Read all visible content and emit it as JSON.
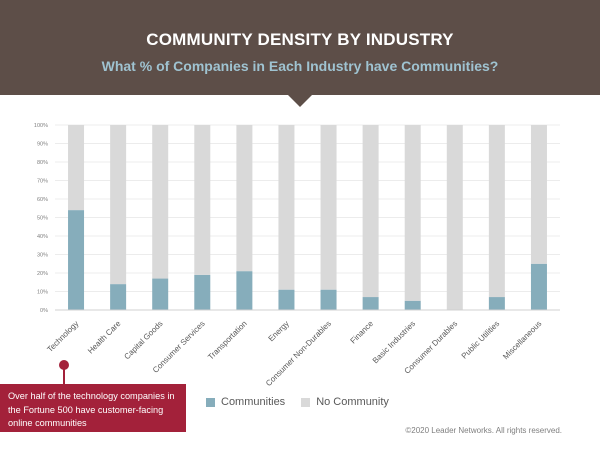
{
  "header": {
    "title": "COMMUNITY DENSITY BY INDUSTRY",
    "subtitle": "What % of Companies in Each Industry have Communities?"
  },
  "callout": {
    "text": "Over half of the technology companies in the Fortune 500 have customer-facing online communities"
  },
  "footer": {
    "copyright": "©2020 Leader Networks. All rights reserved."
  },
  "colors": {
    "banner": "#5d4e48",
    "communities": "#86adbb",
    "no_community": "#d9d9d9",
    "callout": "#a3213a"
  },
  "chart_data": {
    "type": "bar",
    "stacked": true,
    "percent": true,
    "categories": [
      "Technology",
      "Health Care",
      "Capital Goods",
      "Consumer Services",
      "Transportation",
      "Energy",
      "Consumer Non-Durables",
      "Finance",
      "Basic Industries",
      "Consumer Durables",
      "Public Utilities",
      "Miscellaneous"
    ],
    "series": [
      {
        "name": "Communities",
        "values": [
          54,
          14,
          17,
          19,
          21,
          11,
          11,
          7,
          5,
          0,
          7,
          25
        ]
      },
      {
        "name": "No Community",
        "values": [
          46,
          86,
          83,
          81,
          79,
          89,
          89,
          93,
          95,
          100,
          93,
          75
        ]
      }
    ],
    "ylim": [
      0,
      100
    ],
    "yticks": [
      "0%",
      "10%",
      "20%",
      "30%",
      "40%",
      "50%",
      "60%",
      "70%",
      "80%",
      "90%",
      "100%"
    ],
    "grid": true,
    "legend": "bottom"
  }
}
